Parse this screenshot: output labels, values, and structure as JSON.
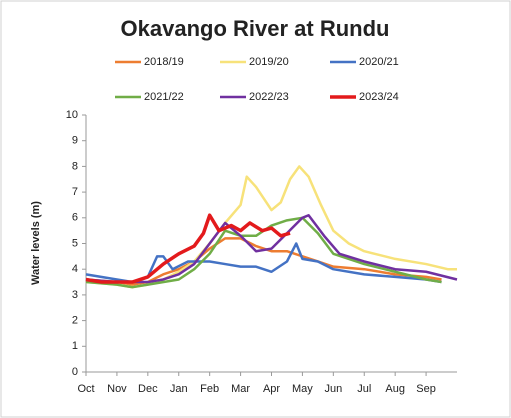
{
  "chart_data": {
    "type": "line",
    "title": "Okavango River at Rundu",
    "y_label": "Water levels (m)",
    "xlim": [
      0,
      12
    ],
    "ylim": [
      0,
      10
    ],
    "xticks": [
      {
        "value": 0,
        "label": "Oct"
      },
      {
        "value": 1,
        "label": "Nov"
      },
      {
        "value": 2,
        "label": "Dec"
      },
      {
        "value": 3,
        "label": "Jan"
      },
      {
        "value": 4,
        "label": "Feb"
      },
      {
        "value": 5,
        "label": "Mar"
      },
      {
        "value": 6,
        "label": "Apr"
      },
      {
        "value": 7,
        "label": "May"
      },
      {
        "value": 8,
        "label": "Jun"
      },
      {
        "value": 9,
        "label": "Jul"
      },
      {
        "value": 10,
        "label": "Aug"
      },
      {
        "value": 11,
        "label": "Sep"
      }
    ],
    "yticks": [
      0,
      1,
      2,
      3,
      4,
      5,
      6,
      7,
      8,
      9,
      10
    ],
    "series": [
      {
        "name": "2018/19",
        "color": "#ed7d31",
        "x": [
          0,
          1,
          1.5,
          2,
          2.5,
          3,
          3.5,
          4,
          4.5,
          5,
          5.5,
          6,
          6.5,
          7,
          7.5,
          8,
          9,
          10,
          11,
          11.5
        ],
        "values": [
          3.6,
          3.5,
          3.4,
          3.5,
          3.8,
          4.0,
          4.3,
          4.8,
          5.2,
          5.2,
          4.9,
          4.7,
          4.7,
          4.5,
          4.3,
          4.1,
          4.0,
          3.8,
          3.7,
          3.6
        ]
      },
      {
        "name": "2019/20",
        "color": "#f7e27a",
        "x": [
          0,
          1,
          1.5,
          2,
          2.5,
          3,
          3.5,
          4,
          4.5,
          5,
          5.2,
          5.5,
          6,
          6.3,
          6.6,
          6.9,
          7.2,
          7.6,
          8,
          8.5,
          9,
          10,
          11,
          11.7,
          12
        ],
        "values": [
          3.5,
          3.4,
          3.3,
          3.4,
          3.6,
          3.9,
          4.3,
          5.0,
          5.8,
          6.5,
          7.6,
          7.2,
          6.3,
          6.6,
          7.5,
          8.0,
          7.6,
          6.5,
          5.5,
          5.0,
          4.7,
          4.4,
          4.2,
          4.0,
          4.0
        ]
      },
      {
        "name": "2020/21",
        "color": "#4472c4",
        "x": [
          0,
          1,
          1.5,
          2,
          2.3,
          2.5,
          2.8,
          3.3,
          4,
          4.5,
          5,
          5.5,
          6,
          6.5,
          6.8,
          7,
          7.5,
          8,
          9,
          10,
          11,
          11.5
        ],
        "values": [
          3.8,
          3.6,
          3.5,
          3.7,
          4.5,
          4.5,
          4.0,
          4.3,
          4.3,
          4.2,
          4.1,
          4.1,
          3.9,
          4.3,
          5.0,
          4.4,
          4.3,
          4.0,
          3.8,
          3.7,
          3.6,
          3.5
        ]
      },
      {
        "name": "2021/22",
        "color": "#70ad47",
        "x": [
          0,
          1,
          1.5,
          2,
          3,
          3.5,
          4,
          4.5,
          5,
          5.5,
          6,
          6.5,
          7,
          7.5,
          8,
          9,
          10,
          11,
          11.5
        ],
        "values": [
          3.5,
          3.4,
          3.3,
          3.4,
          3.6,
          4.0,
          4.6,
          5.5,
          5.3,
          5.3,
          5.7,
          5.9,
          6.0,
          5.4,
          4.6,
          4.2,
          3.9,
          3.6,
          3.5
        ]
      },
      {
        "name": "2022/23",
        "color": "#7030a0",
        "x": [
          0,
          1,
          2,
          2.5,
          3,
          3.5,
          4,
          4.5,
          5,
          5.5,
          6,
          6.5,
          7,
          7.2,
          7.7,
          8.2,
          9,
          10,
          11,
          12
        ],
        "values": [
          3.6,
          3.5,
          3.5,
          3.6,
          3.8,
          4.2,
          5.0,
          5.8,
          5.3,
          4.7,
          4.8,
          5.4,
          6.0,
          6.1,
          5.3,
          4.6,
          4.3,
          4.0,
          3.9,
          3.6
        ]
      },
      {
        "name": "2023/24",
        "color": "#e31a1c",
        "x": [
          0,
          0.5,
          1,
          1.5,
          2,
          2.5,
          3,
          3.5,
          3.8,
          4,
          4.3,
          4.7,
          5,
          5.3,
          5.7,
          6,
          6.3,
          6.6
        ],
        "values": [
          3.6,
          3.5,
          3.5,
          3.5,
          3.7,
          4.2,
          4.6,
          4.9,
          5.4,
          6.1,
          5.5,
          5.7,
          5.5,
          5.8,
          5.5,
          5.6,
          5.3,
          5.4
        ]
      }
    ]
  }
}
